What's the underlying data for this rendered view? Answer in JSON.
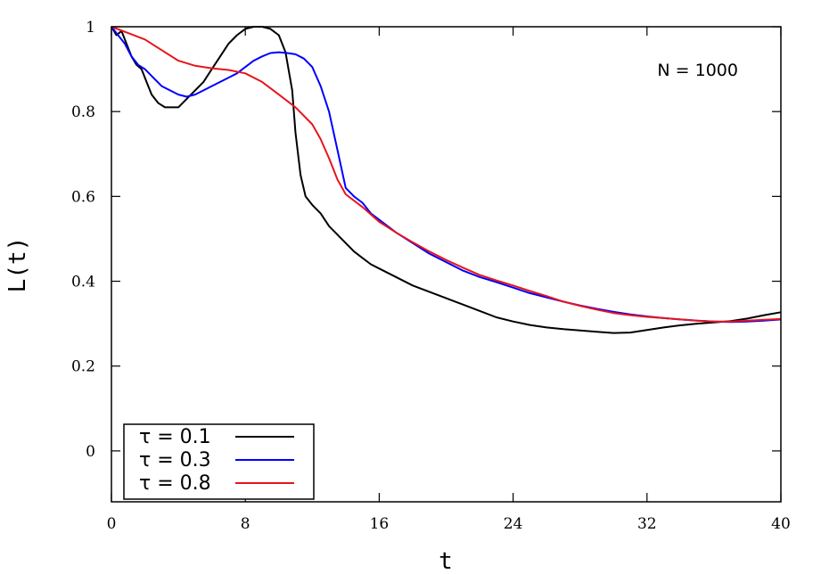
{
  "chart_data": {
    "type": "line",
    "xlabel": "t",
    "ylabel": "L(t)",
    "xlim": [
      0,
      40
    ],
    "ylim": [
      -0.12,
      1.0
    ],
    "xticks": [
      0,
      8,
      16,
      24,
      32,
      40
    ],
    "yticks": [
      0,
      0.2,
      0.4,
      0.6,
      0.8,
      1
    ],
    "xtick_labels": [
      "0",
      "8",
      "16",
      "24",
      "32",
      "40"
    ],
    "ytick_labels": [
      "0",
      "0.2",
      "0.4",
      "0.6",
      "0.8",
      "1"
    ],
    "grid": false,
    "legend_position": "bottom-left",
    "annotation": "N = 1000",
    "series": [
      {
        "name": "τ = 0.1",
        "color": "#000000",
        "points": [
          [
            0,
            1.0
          ],
          [
            0.3,
            0.98
          ],
          [
            0.6,
            0.99
          ],
          [
            0.9,
            0.96
          ],
          [
            1.2,
            0.93
          ],
          [
            1.5,
            0.91
          ],
          [
            1.8,
            0.9
          ],
          [
            2.1,
            0.87
          ],
          [
            2.4,
            0.84
          ],
          [
            2.8,
            0.82
          ],
          [
            3.2,
            0.81
          ],
          [
            3.6,
            0.81
          ],
          [
            4.0,
            0.81
          ],
          [
            4.5,
            0.83
          ],
          [
            5.0,
            0.85
          ],
          [
            5.5,
            0.87
          ],
          [
            6.0,
            0.9
          ],
          [
            6.5,
            0.93
          ],
          [
            7.0,
            0.96
          ],
          [
            7.5,
            0.98
          ],
          [
            8.0,
            0.995
          ],
          [
            8.5,
            1.0
          ],
          [
            9.0,
            1.0
          ],
          [
            9.5,
            0.995
          ],
          [
            10.0,
            0.98
          ],
          [
            10.4,
            0.94
          ],
          [
            10.8,
            0.85
          ],
          [
            11.0,
            0.75
          ],
          [
            11.3,
            0.65
          ],
          [
            11.6,
            0.6
          ],
          [
            12.0,
            0.58
          ],
          [
            12.5,
            0.56
          ],
          [
            13.0,
            0.53
          ],
          [
            13.5,
            0.51
          ],
          [
            14.0,
            0.49
          ],
          [
            14.5,
            0.47
          ],
          [
            15.0,
            0.455
          ],
          [
            15.5,
            0.44
          ],
          [
            16.0,
            0.43
          ],
          [
            17.0,
            0.41
          ],
          [
            18.0,
            0.39
          ],
          [
            19.0,
            0.375
          ],
          [
            20.0,
            0.36
          ],
          [
            21.0,
            0.345
          ],
          [
            22.0,
            0.33
          ],
          [
            23.0,
            0.315
          ],
          [
            24.0,
            0.305
          ],
          [
            25.0,
            0.297
          ],
          [
            26.0,
            0.291
          ],
          [
            27.0,
            0.287
          ],
          [
            28.0,
            0.284
          ],
          [
            29.0,
            0.281
          ],
          [
            30.0,
            0.278
          ],
          [
            31.0,
            0.279
          ],
          [
            32.0,
            0.285
          ],
          [
            33.0,
            0.291
          ],
          [
            34.0,
            0.296
          ],
          [
            35.0,
            0.3
          ],
          [
            36.0,
            0.303
          ],
          [
            37.0,
            0.306
          ],
          [
            38.0,
            0.312
          ],
          [
            39.0,
            0.32
          ],
          [
            40.0,
            0.327
          ]
        ]
      },
      {
        "name": "τ = 0.3",
        "color": "#0000ff",
        "points": [
          [
            0,
            1.0
          ],
          [
            0.4,
            0.98
          ],
          [
            0.8,
            0.96
          ],
          [
            1.2,
            0.93
          ],
          [
            1.6,
            0.91
          ],
          [
            2.0,
            0.9
          ],
          [
            2.5,
            0.88
          ],
          [
            3.0,
            0.86
          ],
          [
            3.5,
            0.85
          ],
          [
            4.0,
            0.84
          ],
          [
            4.5,
            0.835
          ],
          [
            5.0,
            0.84
          ],
          [
            5.5,
            0.85
          ],
          [
            6.0,
            0.86
          ],
          [
            6.5,
            0.87
          ],
          [
            7.0,
            0.88
          ],
          [
            7.5,
            0.89
          ],
          [
            8.0,
            0.905
          ],
          [
            8.5,
            0.92
          ],
          [
            9.0,
            0.93
          ],
          [
            9.5,
            0.938
          ],
          [
            10.0,
            0.94
          ],
          [
            10.5,
            0.938
          ],
          [
            11.0,
            0.935
          ],
          [
            11.5,
            0.925
          ],
          [
            12.0,
            0.905
          ],
          [
            12.5,
            0.86
          ],
          [
            13.0,
            0.8
          ],
          [
            13.5,
            0.71
          ],
          [
            14.0,
            0.62
          ],
          [
            14.5,
            0.6
          ],
          [
            15.0,
            0.585
          ],
          [
            15.5,
            0.56
          ],
          [
            16.0,
            0.545
          ],
          [
            17.0,
            0.515
          ],
          [
            18.0,
            0.49
          ],
          [
            19.0,
            0.465
          ],
          [
            20.0,
            0.445
          ],
          [
            21.0,
            0.425
          ],
          [
            22.0,
            0.41
          ],
          [
            23.0,
            0.398
          ],
          [
            24.0,
            0.385
          ],
          [
            25.0,
            0.372
          ],
          [
            26.0,
            0.362
          ],
          [
            27.0,
            0.352
          ],
          [
            28.0,
            0.343
          ],
          [
            29.0,
            0.335
          ],
          [
            30.0,
            0.328
          ],
          [
            31.0,
            0.322
          ],
          [
            32.0,
            0.317
          ],
          [
            33.0,
            0.313
          ],
          [
            34.0,
            0.31
          ],
          [
            35.0,
            0.307
          ],
          [
            36.0,
            0.305
          ],
          [
            37.0,
            0.304
          ],
          [
            38.0,
            0.305
          ],
          [
            39.0,
            0.307
          ],
          [
            40.0,
            0.31
          ]
        ]
      },
      {
        "name": "τ = 0.8",
        "color": "#e8141c",
        "points": [
          [
            0,
            1.0
          ],
          [
            1.0,
            0.985
          ],
          [
            2.0,
            0.97
          ],
          [
            3.0,
            0.945
          ],
          [
            4.0,
            0.92
          ],
          [
            5.0,
            0.908
          ],
          [
            6.0,
            0.902
          ],
          [
            7.0,
            0.898
          ],
          [
            8.0,
            0.89
          ],
          [
            9.0,
            0.87
          ],
          [
            10.0,
            0.84
          ],
          [
            11.0,
            0.81
          ],
          [
            12.0,
            0.77
          ],
          [
            12.5,
            0.735
          ],
          [
            13.0,
            0.69
          ],
          [
            13.5,
            0.64
          ],
          [
            14.0,
            0.605
          ],
          [
            15.0,
            0.575
          ],
          [
            16.0,
            0.54
          ],
          [
            17.0,
            0.515
          ],
          [
            18.0,
            0.492
          ],
          [
            19.0,
            0.47
          ],
          [
            20.0,
            0.45
          ],
          [
            21.0,
            0.432
          ],
          [
            22.0,
            0.415
          ],
          [
            23.0,
            0.402
          ],
          [
            24.0,
            0.39
          ],
          [
            25.0,
            0.377
          ],
          [
            26.0,
            0.365
          ],
          [
            27.0,
            0.352
          ],
          [
            28.0,
            0.342
          ],
          [
            29.0,
            0.333
          ],
          [
            30.0,
            0.325
          ],
          [
            31.0,
            0.32
          ],
          [
            32.0,
            0.316
          ],
          [
            33.0,
            0.313
          ],
          [
            34.0,
            0.31
          ],
          [
            35.0,
            0.307
          ],
          [
            36.0,
            0.305
          ],
          [
            37.0,
            0.305
          ],
          [
            38.0,
            0.307
          ],
          [
            39.0,
            0.309
          ],
          [
            40.0,
            0.311
          ]
        ]
      }
    ]
  }
}
